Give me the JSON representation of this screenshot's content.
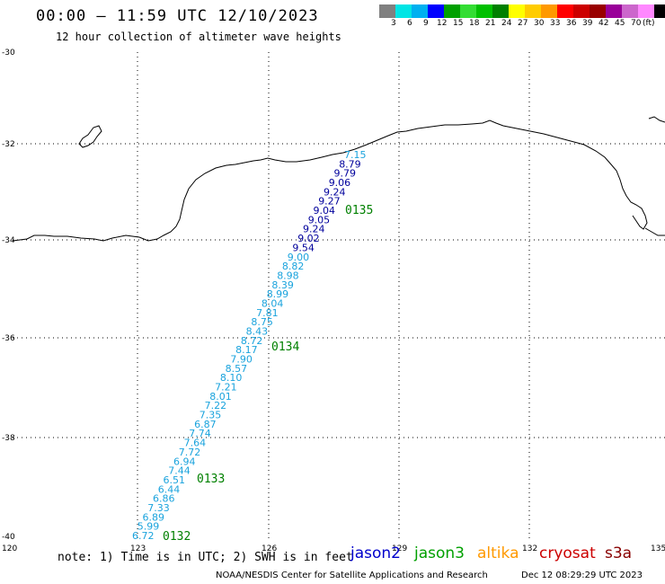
{
  "header": {
    "title": "00:00 – 11:59 UTC 12/10/2023",
    "subtitle": "12 hour collection of altimeter wave heights"
  },
  "legend": {
    "unit": "(ft)",
    "bins": [
      {
        "label": "",
        "color": "#808080"
      },
      {
        "label": "3",
        "color": "#00e5e5"
      },
      {
        "label": "6",
        "color": "#00b0f0"
      },
      {
        "label": "9",
        "color": "#0000ff"
      },
      {
        "label": "12",
        "color": "#00a000"
      },
      {
        "label": "15",
        "color": "#33dd33"
      },
      {
        "label": "18",
        "color": "#00c000"
      },
      {
        "label": "21",
        "color": "#008000"
      },
      {
        "label": "24",
        "color": "#ffff00"
      },
      {
        "label": "27",
        "color": "#ffcc00"
      },
      {
        "label": "30",
        "color": "#ff9900"
      },
      {
        "label": "33",
        "color": "#ff0000"
      },
      {
        "label": "36",
        "color": "#cc0000"
      },
      {
        "label": "39",
        "color": "#990000"
      },
      {
        "label": "42",
        "color": "#990099"
      },
      {
        "label": "45",
        "color": "#cc66cc"
      },
      {
        "label": "70",
        "color": "#ff88ff"
      },
      {
        "label": "",
        "color": "#000000"
      }
    ]
  },
  "axes": {
    "lat_ticks": [
      "-30",
      "-32",
      "-34",
      "-36",
      "-38",
      "-40"
    ],
    "lon_ticks": [
      "120",
      "123",
      "126",
      "129",
      "132",
      "135"
    ]
  },
  "track": {
    "light_color": "#1aa3dd",
    "dark_color": "#00009c",
    "time_color": "#008000",
    "points": [
      {
        "v": "7.15",
        "c": "light"
      },
      {
        "v": "8.79",
        "c": "dark"
      },
      {
        "v": "9.79",
        "c": "dark"
      },
      {
        "v": "9.06",
        "c": "dark"
      },
      {
        "v": "9.24",
        "c": "dark"
      },
      {
        "v": "9.27",
        "c": "dark"
      },
      {
        "v": "9.04",
        "c": "dark"
      },
      {
        "v": "9.05",
        "c": "dark"
      },
      {
        "v": "9.24",
        "c": "dark"
      },
      {
        "v": "9.02",
        "c": "dark"
      },
      {
        "v": "9.54",
        "c": "dark"
      },
      {
        "v": "9.00",
        "c": "light"
      },
      {
        "v": "8.82",
        "c": "light"
      },
      {
        "v": "8.98",
        "c": "light"
      },
      {
        "v": "8.39",
        "c": "light"
      },
      {
        "v": "8.99",
        "c": "light"
      },
      {
        "v": "8.04",
        "c": "light"
      },
      {
        "v": "7.81",
        "c": "light"
      },
      {
        "v": "8.75",
        "c": "light"
      },
      {
        "v": "8.43",
        "c": "light"
      },
      {
        "v": "8.72",
        "c": "light"
      },
      {
        "v": "8.17",
        "c": "light"
      },
      {
        "v": "7.90",
        "c": "light"
      },
      {
        "v": "8.57",
        "c": "light"
      },
      {
        "v": "8.10",
        "c": "light"
      },
      {
        "v": "7.21",
        "c": "light"
      },
      {
        "v": "8.01",
        "c": "light"
      },
      {
        "v": "7.22",
        "c": "light"
      },
      {
        "v": "7.35",
        "c": "light"
      },
      {
        "v": "6.87",
        "c": "light"
      },
      {
        "v": "7.74",
        "c": "light"
      },
      {
        "v": "7.64",
        "c": "light"
      },
      {
        "v": "7.72",
        "c": "light"
      },
      {
        "v": "6.94",
        "c": "light"
      },
      {
        "v": "7.44",
        "c": "light"
      },
      {
        "v": "6.51",
        "c": "light"
      },
      {
        "v": "6.44",
        "c": "light"
      },
      {
        "v": "6.86",
        "c": "light"
      },
      {
        "v": "7.33",
        "c": "light"
      },
      {
        "v": "6.89",
        "c": "light"
      },
      {
        "v": "5.99",
        "c": "light"
      },
      {
        "v": "6.72",
        "c": "light"
      }
    ],
    "time_labels": [
      "0135",
      "0134",
      "0133",
      "0132"
    ]
  },
  "footer": {
    "note": "note: 1) Time is in UTC; 2) SWH is in feet",
    "satellites": [
      {
        "name": "jason2",
        "color": "#0000cc"
      },
      {
        "name": "jason3",
        "color": "#00a000"
      },
      {
        "name": "altika",
        "color": "#ff9900"
      },
      {
        "name": "cryosat",
        "color": "#cc0000"
      },
      {
        "name": "s3a",
        "color": "#880000"
      }
    ],
    "credit": "NOAA/NESDIS Center for Satellite Applications and Research",
    "stamp": "Dec 12 08:29:29 UTC 2023"
  }
}
